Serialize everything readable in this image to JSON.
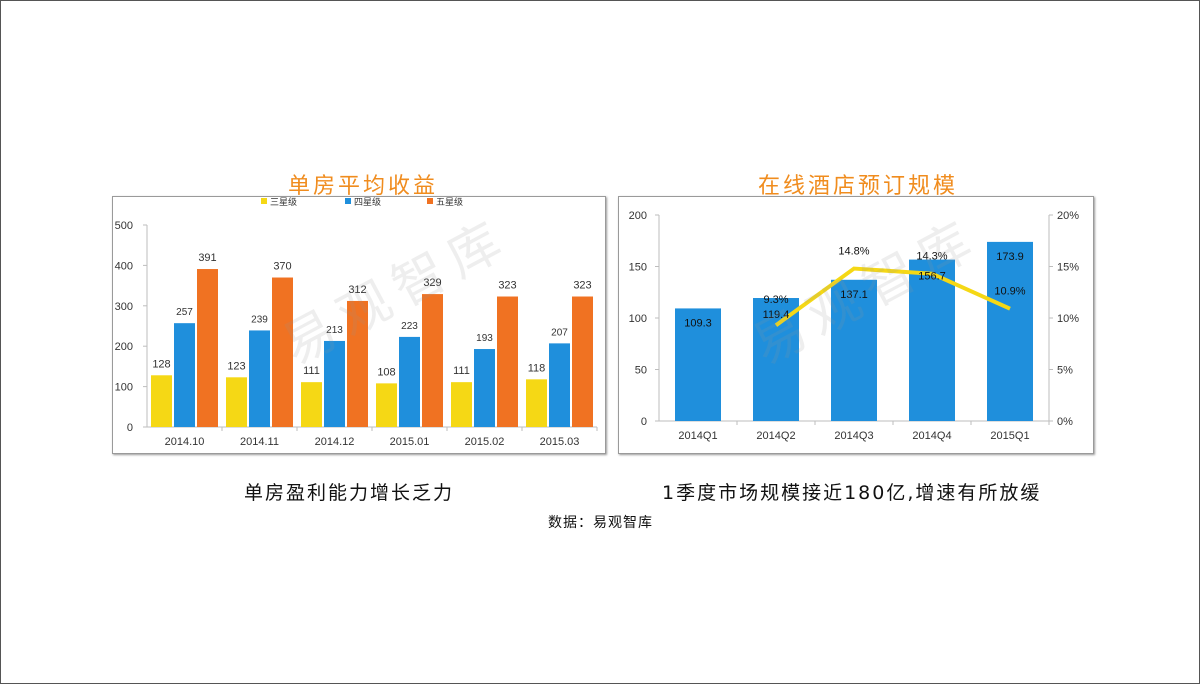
{
  "chart_data": [
    {
      "type": "bar",
      "title": "单房平均收益",
      "categories": [
        "2014.10",
        "2014.11",
        "2014.12",
        "2015.01",
        "2015.02",
        "2015.03"
      ],
      "series": [
        {
          "name": "三星级",
          "color": "#f5d815",
          "values": [
            128,
            123,
            111,
            108,
            111,
            118
          ]
        },
        {
          "name": "四星级",
          "color": "#1f8fdc",
          "values": [
            257,
            239,
            213,
            223,
            193,
            207
          ]
        },
        {
          "name": "五星级",
          "color": "#f07222",
          "values": [
            391,
            370,
            312,
            329,
            323,
            323
          ]
        }
      ],
      "ylim": [
        0,
        500
      ],
      "yticks": [
        "0",
        "100",
        "200",
        "300",
        "400",
        "500"
      ],
      "legend": "top",
      "grid": false
    },
    {
      "type": "bar",
      "title": "在线酒店预订规模",
      "categories": [
        "2014Q1",
        "2014Q2",
        "2014Q3",
        "2014Q4",
        "2015Q1"
      ],
      "bar_series": {
        "color": "#1f8fdc",
        "values": [
          109.3,
          119.4,
          137.1,
          156.7,
          173.9
        ],
        "labels": [
          "109.3",
          "119.4",
          "137.1",
          "156.7",
          "173.9"
        ]
      },
      "line_series": {
        "color": "#f5d815",
        "values": [
          null,
          9.3,
          14.8,
          14.3,
          10.9
        ],
        "labels": [
          "",
          "9.3%",
          "14.8%",
          "14.3%",
          "10.9%"
        ]
      },
      "ylim": [
        0,
        200
      ],
      "yticks": [
        "0",
        "50",
        "100",
        "150",
        "200"
      ],
      "y2lim": [
        0,
        20
      ],
      "y2ticks": [
        "0%",
        "5%",
        "10%",
        "15%",
        "20%"
      ],
      "grid": false
    }
  ],
  "captions": {
    "left": "单房盈利能力增长乏力",
    "right": "1季度市场规模接近180亿,增速有所放缓",
    "source": "数据：易观智库"
  },
  "watermark": "易观智库"
}
